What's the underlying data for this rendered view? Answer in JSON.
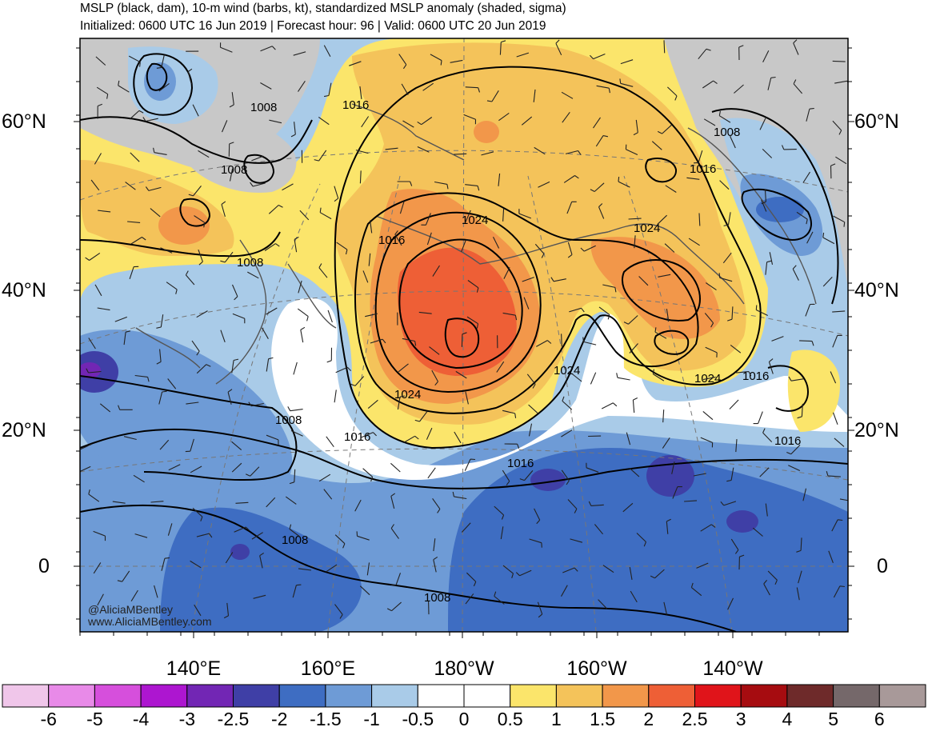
{
  "header": {
    "title": "MSLP (black, dam), 10-m wind (barbs, kt), standardized MSLP anomaly (shaded, sigma)",
    "subtitle": "Initialized: 0600 UTC 16 Jun 2019 | Forecast hour: 96 | Valid: 0600 UTC 20 Jun 2019"
  },
  "axes": {
    "lat_labels": [
      "60°N",
      "40°N",
      "20°N",
      "0"
    ],
    "lon_labels": [
      "140°E",
      "160°E",
      "180°W",
      "160°W",
      "140°W"
    ]
  },
  "isobar_labels": {
    "l1008a": "1008",
    "l1008b": "1008",
    "l1008c": "1008",
    "l1008d": "1008",
    "l1008e": "1008",
    "l1008f": "1008",
    "l1016a": "1016",
    "l1016b": "1016",
    "l1016c": "1016",
    "l1016d": "1016",
    "l1016e": "1016",
    "l1016f": "1016",
    "l1016g": "1016",
    "l1024a": "1024",
    "l1024b": "1024",
    "l1024c": "1024",
    "l1024d": "1024",
    "l1024e": "1024"
  },
  "credit": {
    "handle": "@AliciaMBentley",
    "website": "www.AliciaMBentley.com"
  },
  "colorbar": {
    "labels": [
      "-6",
      "-5",
      "-4",
      "-3",
      "-2.5",
      "-2",
      "-1.5",
      "-1",
      "-0.5",
      "0",
      "0.5",
      "1",
      "1.5",
      "2",
      "2.5",
      "3",
      "4",
      "5",
      "6"
    ],
    "colors": [
      "#f0c6ea",
      "#e88ae8",
      "#d64fdc",
      "#ad16d0",
      "#7226b4",
      "#3f3fa6",
      "#3e6dc2",
      "#6e9bd6",
      "#a9cbe8",
      "#ffffff",
      "#ffffff",
      "#fbe56b",
      "#f4c35a",
      "#f2974a",
      "#ee5f36",
      "#e0141a",
      "#a60c10",
      "#6e2a2a",
      "#75686a",
      "#a89999"
    ]
  }
}
